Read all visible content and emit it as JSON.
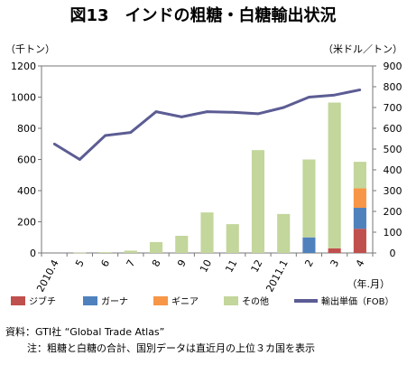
{
  "chart_data": {
    "type": "bar",
    "title": "図13　インドの粗糖・白糖輸出状況",
    "ylabel_left": "（千トン）",
    "ylabel_right": "（米ドル／トン）",
    "xlabel": "（年.月）",
    "categories": [
      "2010.4",
      "5",
      "6",
      "7",
      "8",
      "9",
      "10",
      "11",
      "12",
      "2011.1",
      "2",
      "3",
      "4"
    ],
    "ylim_left": [
      0,
      1200
    ],
    "yticks_left": [
      0,
      200,
      400,
      600,
      800,
      1000,
      1200
    ],
    "ylim_right": [
      0,
      900
    ],
    "yticks_right": [
      0,
      100,
      200,
      300,
      400,
      500,
      600,
      700,
      800,
      900
    ],
    "stacked": true,
    "series": [
      {
        "name": "ジブチ",
        "color": "#c0504d",
        "axis": "left",
        "values": [
          0,
          0,
          0,
          0,
          0,
          0,
          0,
          0,
          0,
          0,
          0,
          30,
          155
        ]
      },
      {
        "name": "ガーナ",
        "color": "#4f81bd",
        "axis": "left",
        "values": [
          0,
          0,
          0,
          0,
          0,
          0,
          0,
          0,
          0,
          0,
          100,
          0,
          135
        ]
      },
      {
        "name": "ギニア",
        "color": "#f79646",
        "axis": "left",
        "values": [
          0,
          0,
          0,
          0,
          0,
          0,
          0,
          0,
          0,
          0,
          0,
          0,
          125
        ]
      },
      {
        "name": "その他",
        "color": "#c3d69b",
        "axis": "left",
        "values": [
          0,
          2,
          5,
          15,
          70,
          110,
          260,
          185,
          660,
          250,
          500,
          935,
          170
        ]
      },
      {
        "name": "輸出単価（FOB）",
        "type": "line",
        "color": "#5c5c94",
        "axis": "right",
        "values": [
          525,
          450,
          565,
          580,
          680,
          655,
          680,
          677,
          670,
          700,
          750,
          760,
          785
        ]
      }
    ],
    "grid": false,
    "legend_position": "bottom"
  },
  "notes": {
    "source": "資料：GTI社 “Global Trade Atlas”",
    "note": "注：粗糖と白糖の合計、国別データは直近月の上位３カ国を表示"
  }
}
